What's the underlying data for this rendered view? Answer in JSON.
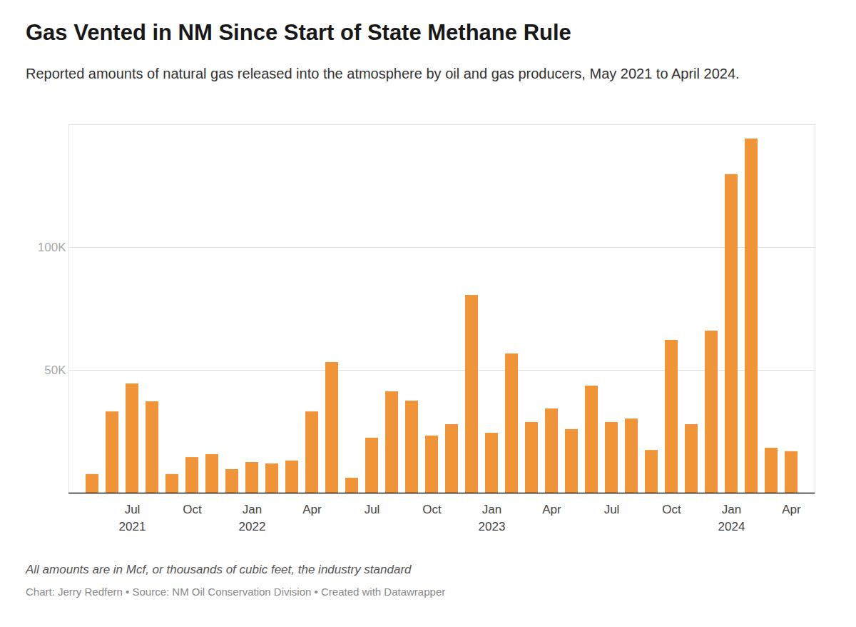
{
  "chart_data": {
    "type": "bar",
    "title": "Gas Vented in NM Since Start of State Methane Rule",
    "subtitle": "Reported amounts of natural gas released into the atmosphere by oil and gas producers, May 2021 to April 2024.",
    "caption": "All amounts are in Mcf, or thousands of cubic feet, the industry standard",
    "source": "Chart: Jerry Redfern • Source: NM Oil Conservation Division • Created with Datawrapper",
    "categories": [
      null,
      null,
      "Jul 2021",
      null,
      null,
      "Oct",
      null,
      null,
      "Jan 2022",
      null,
      null,
      "Apr",
      null,
      null,
      "Jul",
      null,
      null,
      "Oct",
      null,
      null,
      "Jan 2023",
      null,
      null,
      "Apr",
      null,
      null,
      "Jul",
      null,
      null,
      "Oct",
      null,
      null,
      "Jan 2024",
      null,
      null,
      "Apr"
    ],
    "values": [
      7600,
      33100,
      44500,
      37200,
      7600,
      14500,
      15700,
      9600,
      12500,
      11900,
      13100,
      33100,
      53200,
      6100,
      22400,
      41300,
      37500,
      23300,
      27900,
      80500,
      24400,
      56700,
      28800,
      34300,
      25900,
      43600,
      28800,
      30200,
      17400,
      62200,
      27900,
      66000,
      129700,
      144200,
      18300,
      16900
    ],
    "color": "#ef9438",
    "ylim": [
      0,
      150000
    ],
    "yticks": [
      {
        "value": 50000,
        "label": "50K"
      },
      {
        "value": 100000,
        "label": "100K"
      }
    ],
    "grid": true
  }
}
